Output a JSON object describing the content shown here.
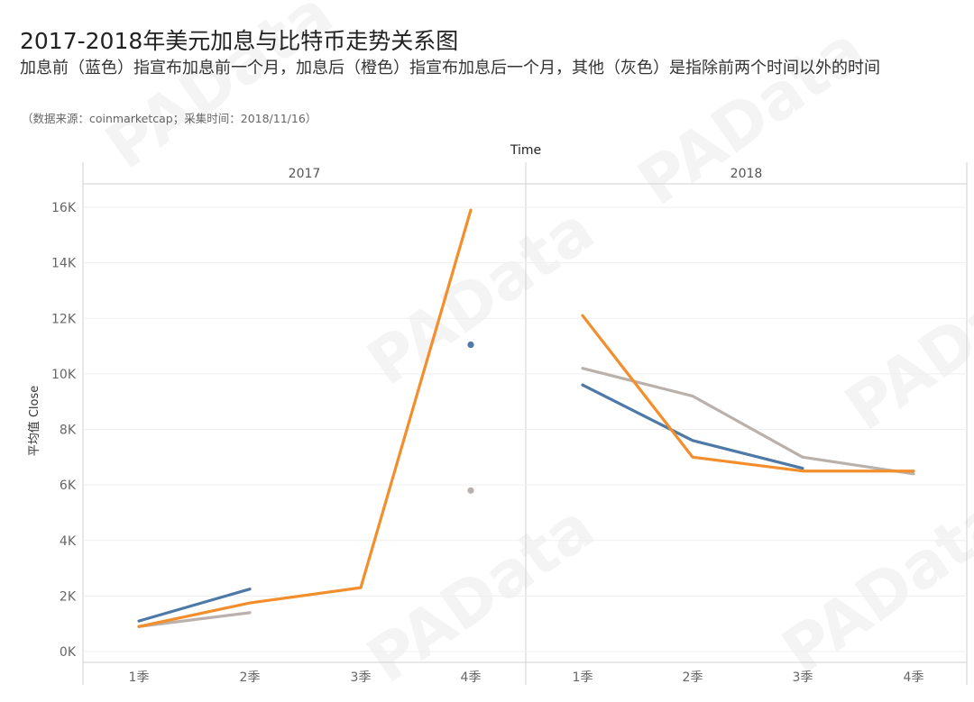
{
  "title": "2017-2018年美元加息与比特币走势关系图",
  "subtitle": "加息前（蓝色）指宣布加息前一个月，加息后（橙色）指宣布加息后一个月，其他（灰色）是指除前两个时间以外的时间",
  "source": "（数据来源：coinmarketcap；采集时间：2018/11/16）",
  "watermark": "PAData",
  "chart_data": {
    "type": "line",
    "xlabel": "Time",
    "ylabel": "平均值 Close",
    "ylim": [
      0,
      16800
    ],
    "y_ticks": [
      {
        "value": 0,
        "label": "0K"
      },
      {
        "value": 2000,
        "label": "2K"
      },
      {
        "value": 4000,
        "label": "4K"
      },
      {
        "value": 6000,
        "label": "6K"
      },
      {
        "value": 8000,
        "label": "8K"
      },
      {
        "value": 10000,
        "label": "10K"
      },
      {
        "value": 12000,
        "label": "12K"
      },
      {
        "value": 14000,
        "label": "14K"
      },
      {
        "value": 16000,
        "label": "16K"
      }
    ],
    "panels": [
      "2017",
      "2018"
    ],
    "categories": [
      "1季",
      "2季",
      "3季",
      "4季"
    ],
    "grid": true,
    "colors": {
      "blue": "#4e79a7",
      "orange": "#f28e2b",
      "gray": "#bab0ac"
    },
    "series": [
      {
        "color": "#4e79a7",
        "values": {
          "2017": [
            1100,
            2250,
            null,
            11050
          ],
          "2018": [
            9600,
            7600,
            6600,
            null
          ]
        }
      },
      {
        "color": "#f28e2b",
        "values": {
          "2017": [
            900,
            1750,
            2300,
            15900
          ],
          "2018": [
            12100,
            7000,
            6500,
            6500
          ]
        }
      },
      {
        "color": "#bab0ac",
        "values": {
          "2017": [
            900,
            1400,
            null,
            5800
          ],
          "2018": [
            10200,
            9200,
            7000,
            6400
          ]
        }
      }
    ]
  }
}
